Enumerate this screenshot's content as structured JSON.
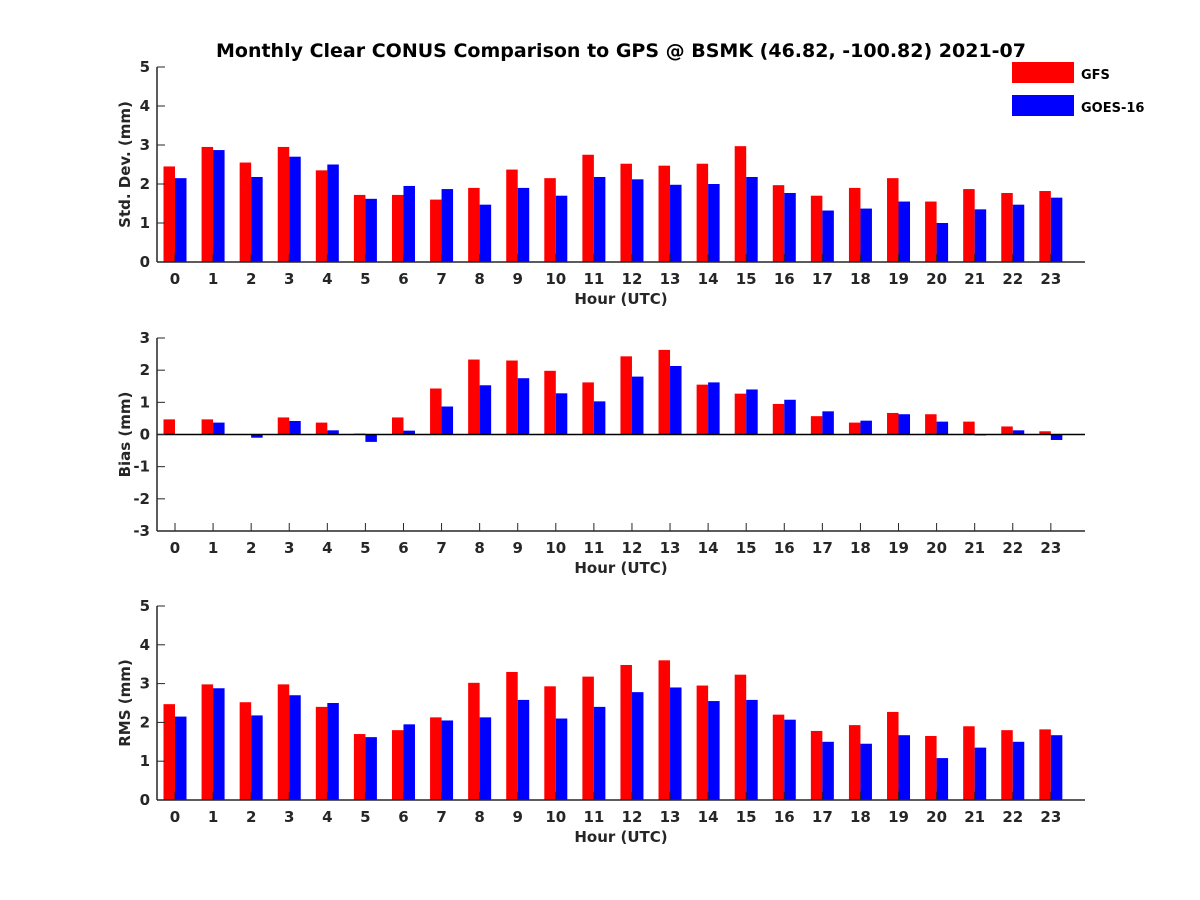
{
  "title": "Monthly Clear CONUS Comparison to GPS @ BSMK (46.82, -100.82) 2021-07",
  "legend": [
    {
      "name": "GFS",
      "color": "#ff0000"
    },
    {
      "name": "GOES-16",
      "color": "#0000ff"
    }
  ],
  "chart_data": [
    {
      "type": "bar",
      "xlabel": "Hour (UTC)",
      "ylabel": "Std. Dev. (mm)",
      "ylim": [
        0,
        5
      ],
      "yticks": [
        0,
        1,
        2,
        3,
        4,
        5
      ],
      "categories": [
        "0",
        "1",
        "2",
        "3",
        "4",
        "5",
        "6",
        "7",
        "8",
        "9",
        "10",
        "11",
        "12",
        "13",
        "14",
        "15",
        "16",
        "17",
        "18",
        "19",
        "20",
        "21",
        "22",
        "23"
      ],
      "series": [
        {
          "name": "GFS",
          "color": "#ff0000",
          "values": [
            2.45,
            2.95,
            2.55,
            2.95,
            2.35,
            1.72,
            1.72,
            1.6,
            1.9,
            2.37,
            2.15,
            2.75,
            2.52,
            2.47,
            2.52,
            2.97,
            1.97,
            1.7,
            1.9,
            2.15,
            1.55,
            1.87,
            1.77,
            1.82
          ]
        },
        {
          "name": "GOES-16",
          "color": "#0000ff",
          "values": [
            2.15,
            2.87,
            2.18,
            2.7,
            2.5,
            1.62,
            1.95,
            1.87,
            1.47,
            1.9,
            1.7,
            2.18,
            2.12,
            1.98,
            2.0,
            2.18,
            1.77,
            1.32,
            1.37,
            1.55,
            1.0,
            1.35,
            1.47,
            1.65
          ]
        }
      ]
    },
    {
      "type": "bar",
      "xlabel": "Hour (UTC)",
      "ylabel": "Bias (mm)",
      "ylim": [
        -3,
        3
      ],
      "yticks": [
        -3,
        -2,
        -1,
        0,
        1,
        2,
        3
      ],
      "categories": [
        "0",
        "1",
        "2",
        "3",
        "4",
        "5",
        "6",
        "7",
        "8",
        "9",
        "10",
        "11",
        "12",
        "13",
        "14",
        "15",
        "16",
        "17",
        "18",
        "19",
        "20",
        "21",
        "22",
        "23"
      ],
      "series": [
        {
          "name": "GFS",
          "color": "#ff0000",
          "values": [
            0.47,
            0.47,
            0.0,
            0.53,
            0.37,
            0.03,
            0.53,
            1.43,
            2.33,
            2.3,
            1.98,
            1.62,
            2.43,
            2.63,
            1.55,
            1.27,
            0.95,
            0.57,
            0.37,
            0.67,
            0.63,
            0.4,
            0.25,
            0.1
          ]
        },
        {
          "name": "GOES-16",
          "color": "#0000ff",
          "values": [
            0.0,
            0.37,
            -0.1,
            0.42,
            0.13,
            -0.23,
            0.12,
            0.87,
            1.53,
            1.75,
            1.28,
            1.03,
            1.8,
            2.13,
            1.62,
            1.4,
            1.08,
            0.72,
            0.43,
            0.63,
            0.4,
            -0.03,
            0.13,
            -0.17
          ]
        }
      ]
    },
    {
      "type": "bar",
      "xlabel": "Hour (UTC)",
      "ylabel": "RMS (mm)",
      "ylim": [
        0,
        5
      ],
      "yticks": [
        0,
        1,
        2,
        3,
        4,
        5
      ],
      "categories": [
        "0",
        "1",
        "2",
        "3",
        "4",
        "5",
        "6",
        "7",
        "8",
        "9",
        "10",
        "11",
        "12",
        "13",
        "14",
        "15",
        "16",
        "17",
        "18",
        "19",
        "20",
        "21",
        "22",
        "23"
      ],
      "series": [
        {
          "name": "GFS",
          "color": "#ff0000",
          "values": [
            2.47,
            2.98,
            2.52,
            2.98,
            2.4,
            1.7,
            1.8,
            2.13,
            3.02,
            3.3,
            2.93,
            3.18,
            3.48,
            3.6,
            2.95,
            3.23,
            2.2,
            1.78,
            1.93,
            2.27,
            1.65,
            1.9,
            1.8,
            1.82
          ]
        },
        {
          "name": "GOES-16",
          "color": "#0000ff",
          "values": [
            2.15,
            2.88,
            2.18,
            2.7,
            2.5,
            1.62,
            1.95,
            2.05,
            2.13,
            2.58,
            2.1,
            2.4,
            2.78,
            2.9,
            2.55,
            2.58,
            2.07,
            1.5,
            1.45,
            1.67,
            1.08,
            1.35,
            1.5,
            1.67
          ]
        }
      ]
    }
  ]
}
